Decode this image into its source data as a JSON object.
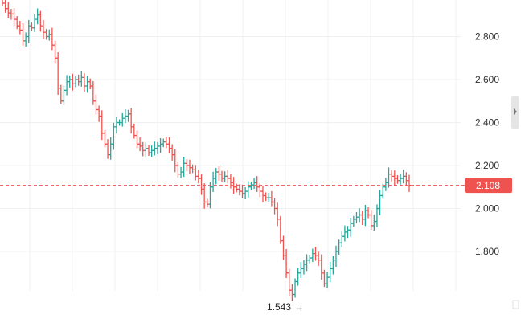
{
  "chart_data": {
    "type": "ohlc",
    "title": "",
    "xlabel": "",
    "ylabel": "",
    "ylim": [
      1.62,
      2.96
    ],
    "y_ticks": [
      "1.800",
      "2.000",
      "2.200",
      "2.400",
      "2.600",
      "2.800"
    ],
    "grid": true,
    "legend": "none",
    "last_price": 2.108,
    "last_price_label": "2.108",
    "min_price_label": "1.543",
    "colors": {
      "up": "#26a69a",
      "down": "#ef5350",
      "grid": "#f0f0f0",
      "last_line": "#ef5350",
      "tag_bg": "#ef5350"
    },
    "closes": [
      2.955,
      2.93,
      2.91,
      2.905,
      2.88,
      2.85,
      2.83,
      2.78,
      2.8,
      2.85,
      2.84,
      2.88,
      2.9,
      2.85,
      2.82,
      2.8,
      2.81,
      2.76,
      2.7,
      2.56,
      2.5,
      2.55,
      2.59,
      2.6,
      2.58,
      2.6,
      2.59,
      2.61,
      2.57,
      2.59,
      2.57,
      2.5,
      2.46,
      2.43,
      2.35,
      2.3,
      2.25,
      2.3,
      2.38,
      2.4,
      2.4,
      2.42,
      2.43,
      2.44,
      2.38,
      2.34,
      2.3,
      2.29,
      2.27,
      2.28,
      2.26,
      2.27,
      2.28,
      2.29,
      2.3,
      2.31,
      2.3,
      2.28,
      2.25,
      2.2,
      2.16,
      2.17,
      2.21,
      2.2,
      2.19,
      2.18,
      2.15,
      2.14,
      2.09,
      2.03,
      2.02,
      2.1,
      2.14,
      2.17,
      2.16,
      2.14,
      2.15,
      2.14,
      2.12,
      2.1,
      2.09,
      2.08,
      2.07,
      2.08,
      2.1,
      2.11,
      2.12,
      2.1,
      2.08,
      2.06,
      2.05,
      2.05,
      2.03,
      2.0,
      1.95,
      1.85,
      1.78,
      1.7,
      1.62,
      1.6,
      1.66,
      1.7,
      1.72,
      1.74,
      1.76,
      1.77,
      1.79,
      1.78,
      1.76,
      1.7,
      1.65,
      1.68,
      1.72,
      1.76,
      1.8,
      1.84,
      1.87,
      1.89,
      1.9,
      1.93,
      1.95,
      1.96,
      1.97,
      1.95,
      1.99,
      1.97,
      1.92,
      1.94,
      2.0,
      2.06,
      2.1,
      2.12,
      2.16,
      2.15,
      2.14,
      2.13,
      2.14,
      2.15,
      2.13,
      2.108
    ]
  }
}
